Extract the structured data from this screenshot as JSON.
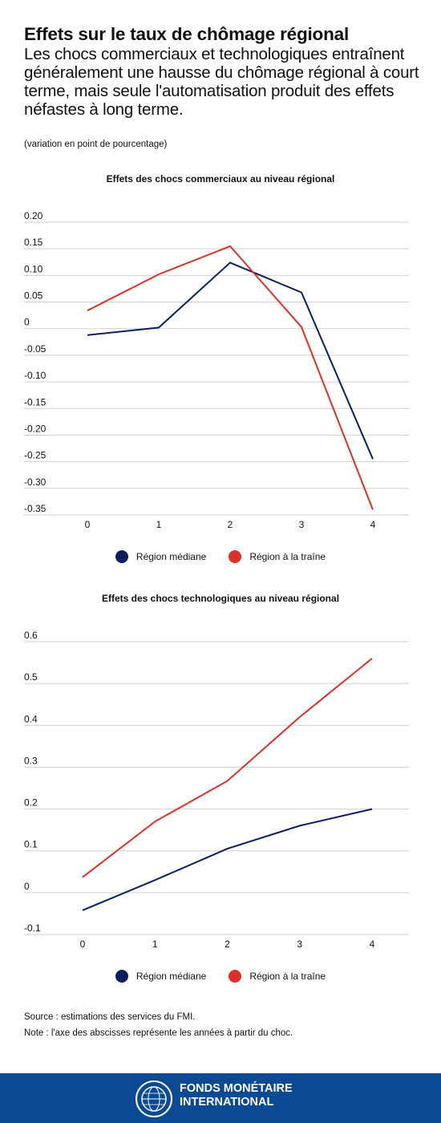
{
  "header": {
    "title": "Effets sur le taux de chômage régional",
    "subtitle": "Les chocs commerciaux et technologiques entraînent généralement une hausse du chômage régional à court terme, mais seule l'automatisation produit des effets néfastes à long terme.",
    "units": "(variation en point de pourcentage)"
  },
  "colors": {
    "median": "#0b1f5c",
    "lagging": "#d9302a",
    "grid": "#cfcfcf",
    "footer": "#0a4a94"
  },
  "chart_data": [
    {
      "type": "line",
      "title": "Effets des chocs commerciaux au niveau régional",
      "x": [
        "0",
        "1",
        "2",
        "3",
        "4"
      ],
      "yticks": [
        0.2,
        0.15,
        0.1,
        0.05,
        0,
        -0.05,
        -0.1,
        -0.15,
        -0.2,
        -0.25,
        -0.3,
        -0.35
      ],
      "ytick_labels": [
        "0.20",
        "0.15",
        "0.10",
        "0.05",
        "0",
        "-0.05",
        "-0.10",
        "-0.15",
        "-0.20",
        "-0.25",
        "-0.30",
        "-0.35"
      ],
      "ylim": [
        -0.35,
        0.2
      ],
      "series": [
        {
          "name": "Région médiane",
          "color": "#0b1f5c",
          "values": [
            -0.012,
            0.002,
            0.124,
            0.068,
            -0.245
          ]
        },
        {
          "name": "Région à la traîne",
          "color": "#d9302a",
          "values": [
            0.034,
            0.102,
            0.155,
            0.003,
            -0.34
          ]
        }
      ]
    },
    {
      "type": "line",
      "title": "Effets des chocs technologiques au niveau régional",
      "x": [
        "0",
        "1",
        "2",
        "3",
        "4"
      ],
      "yticks": [
        0.6,
        0.5,
        0.4,
        0.3,
        0.2,
        0.1,
        0,
        -0.1
      ],
      "ytick_labels": [
        "0.6",
        "0.5",
        "0.4",
        "0.3",
        "0.2",
        "0.1",
        "0",
        "-0.1"
      ],
      "ylim": [
        -0.1,
        0.6
      ],
      "series": [
        {
          "name": "Région médiane",
          "color": "#0b1f5c",
          "values": [
            -0.042,
            0.03,
            0.105,
            0.16,
            0.2
          ]
        },
        {
          "name": "Région à la traîne",
          "color": "#d9302a",
          "values": [
            0.037,
            0.17,
            0.267,
            0.42,
            0.56
          ]
        }
      ]
    }
  ],
  "legend": {
    "median": "Région médiane",
    "lagging": "Région à la traîne"
  },
  "footer": {
    "source": "Source : estimations des services du FMI.",
    "note": "Note : l'axe des abscisses représente les années à partir du choc.",
    "org_line1": "FONDS MONÉTAIRE",
    "org_line2": "INTERNATIONAL"
  }
}
